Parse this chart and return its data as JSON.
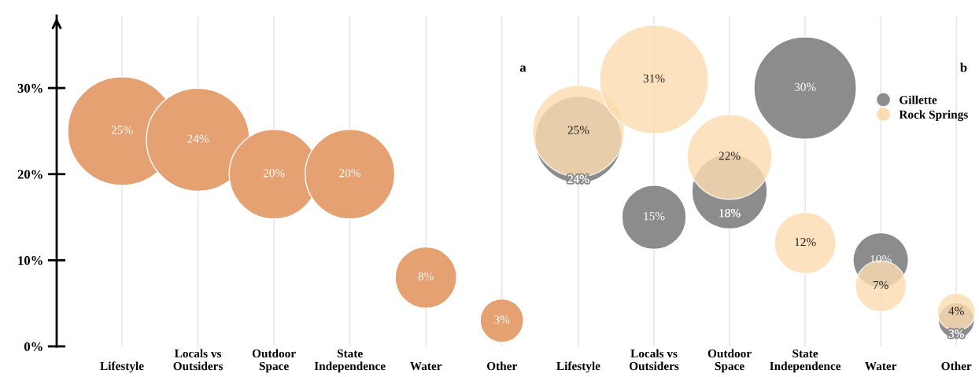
{
  "chart_data": [
    {
      "type": "bubble",
      "categories": [
        "Lifestyle",
        "Locals vs\nOutsiders",
        "Outdoor\nSpace",
        "State\nIndependence",
        "Water",
        "Other"
      ],
      "series": [
        {
          "color": "#e5a172",
          "values": [
            25,
            24,
            20,
            20,
            8,
            3
          ],
          "sizes": [
            1,
            0.9,
            0.68,
            0.68,
            0.32,
            0.16
          ],
          "value_labels": [
            "25%",
            "24%",
            "20%",
            "20%",
            "8%",
            "3%"
          ]
        }
      ],
      "ylim": [
        0,
        38.4
      ],
      "yticks": [
        {
          "value": 0,
          "label": "0%"
        },
        {
          "value": 10,
          "label": "10%"
        },
        {
          "value": 20,
          "label": "20%"
        },
        {
          "value": 30,
          "label": "30%"
        }
      ],
      "grid": "x",
      "annotations": [
        "a"
      ]
    },
    {
      "type": "bubble",
      "categories": [
        "Lifestyle",
        "Locals vs\nOutsiders",
        "Outdoor\nSpace",
        "State\nIndependence",
        "Water",
        "Other"
      ],
      "series": [
        {
          "name": "Gillette",
          "color": "#8c8c8c",
          "values": [
            24,
            15,
            18,
            30,
            10,
            3
          ],
          "sizes": [
            0.64,
            0.35,
            0.48,
            0.89,
            0.26,
            0.11
          ],
          "value_labels": [
            "24%",
            "15%",
            "18%",
            "30%",
            "10%",
            "3%"
          ]
        },
        {
          "name": "Rock Springs",
          "color": "#fbdcb0",
          "values": [
            25,
            31,
            22,
            12,
            7,
            4
          ],
          "sizes": [
            0.71,
            1,
            0.61,
            0.32,
            0.22,
            0.12
          ],
          "value_labels": [
            "25%",
            "31%",
            "22%",
            "12%",
            "7%",
            "4%"
          ]
        }
      ],
      "ylim": [
        0,
        38.4
      ],
      "tick_labels": "x",
      "grid": "x",
      "legend": "right",
      "annotations": [
        "b"
      ]
    }
  ]
}
